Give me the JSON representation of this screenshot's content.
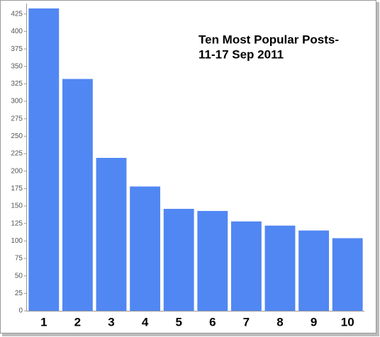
{
  "chart_data": {
    "type": "bar",
    "title": [
      "Ten Most Popular Posts-",
      "11-17 Sep 2011"
    ],
    "categories": [
      "1",
      "2",
      "3",
      "4",
      "5",
      "6",
      "7",
      "8",
      "9",
      "10"
    ],
    "values": [
      433,
      332,
      219,
      178,
      146,
      143,
      128,
      122,
      115,
      104
    ],
    "color": "#5187f3",
    "ylim": [
      0,
      440
    ],
    "yticks": [
      0,
      25,
      50,
      75,
      100,
      125,
      150,
      175,
      200,
      225,
      250,
      275,
      300,
      325,
      350,
      375,
      400,
      425
    ],
    "grid": false
  }
}
